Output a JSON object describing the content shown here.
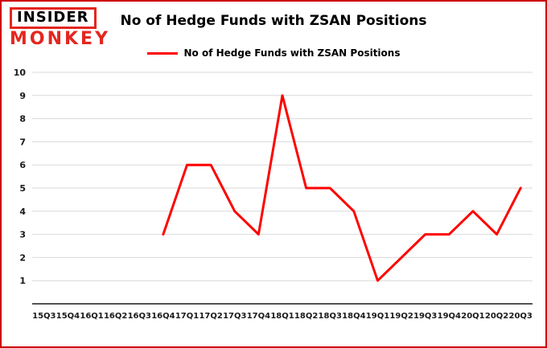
{
  "logo": {
    "line1": "INSIDER",
    "line2": "MONKEY"
  },
  "title": "No of Hedge Funds with ZSAN Positions",
  "legend": {
    "label": "No of Hedge Funds with ZSAN Positions"
  },
  "colors": {
    "frame_border": "#cc0000",
    "line": "#fe0101",
    "grid": "#d9d9d9",
    "axis": "#1a1a1a",
    "logo_red": "#e4261f"
  },
  "chart_data": {
    "type": "line",
    "title": "No of Hedge Funds with ZSAN Positions",
    "xlabel": "",
    "ylabel": "",
    "categories": [
      "15Q3",
      "15Q4",
      "16Q1",
      "16Q2",
      "16Q3",
      "16Q4",
      "17Q1",
      "17Q2",
      "17Q3",
      "17Q4",
      "18Q1",
      "18Q2",
      "18Q3",
      "18Q4",
      "19Q1",
      "19Q2",
      "19Q3",
      "19Q4",
      "20Q1",
      "20Q2",
      "20Q3"
    ],
    "series": [
      {
        "name": "No of Hedge Funds with ZSAN Positions",
        "values": [
          null,
          null,
          null,
          null,
          null,
          3,
          6,
          6,
          4,
          3,
          9,
          5,
          5,
          4,
          1,
          2,
          3,
          3,
          4,
          3,
          5
        ]
      }
    ],
    "ylim": [
      0,
      10
    ],
    "yticks": [
      1,
      2,
      3,
      4,
      5,
      6,
      7,
      8,
      9,
      10
    ],
    "grid": true,
    "legend_position": "top"
  }
}
